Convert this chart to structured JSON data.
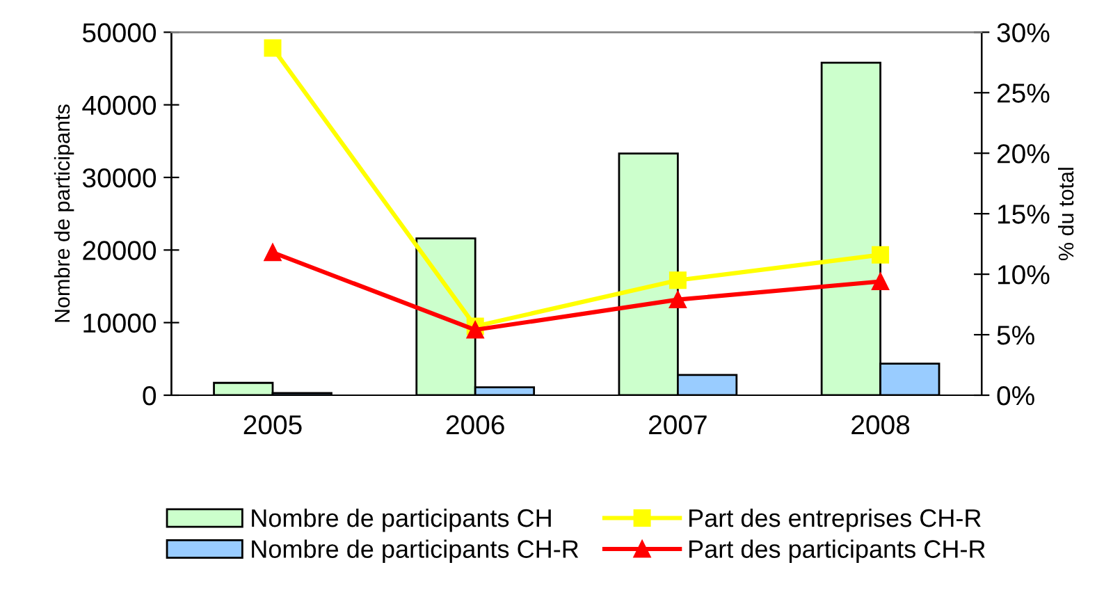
{
  "chart_data": {
    "type": "bar",
    "categories": [
      "2005",
      "2006",
      "2007",
      "2008"
    ],
    "ylabel": "Nombre de participants",
    "y2label": "% du total",
    "ylim": [
      0,
      50000
    ],
    "yticks": [
      0,
      10000,
      20000,
      30000,
      40000,
      50000
    ],
    "y2lim": [
      0,
      30
    ],
    "y2ticks": [
      {
        "value": 0,
        "label": "0%"
      },
      {
        "value": 5,
        "label": "5%"
      },
      {
        "value": 10,
        "label": "10%"
      },
      {
        "value": 15,
        "label": "15%"
      },
      {
        "value": 20,
        "label": "20%"
      },
      {
        "value": 25,
        "label": "25%"
      },
      {
        "value": 30,
        "label": "30%"
      }
    ],
    "grid": false,
    "legend": "bottom",
    "series": [
      {
        "name": "Nombre de participants CH",
        "color": "#ccffcc",
        "values": [
          1700,
          21600,
          33300,
          45800
        ]
      },
      {
        "name": "Nombre de participants CH-R",
        "color": "#99ccff",
        "values": [
          300,
          1100,
          2800,
          4350
        ]
      },
      {
        "name": "Part des entreprises CH-R",
        "type": "line",
        "axis": "y2",
        "marker": "square",
        "color": "#ffff00",
        "values": [
          28.7,
          5.7,
          9.5,
          11.6
        ]
      },
      {
        "name": "Part des participants CH-R",
        "type": "line",
        "axis": "y2",
        "marker": "triangle",
        "color": "#ff0000",
        "values": [
          11.8,
          5.4,
          7.9,
          9.4
        ]
      }
    ]
  }
}
